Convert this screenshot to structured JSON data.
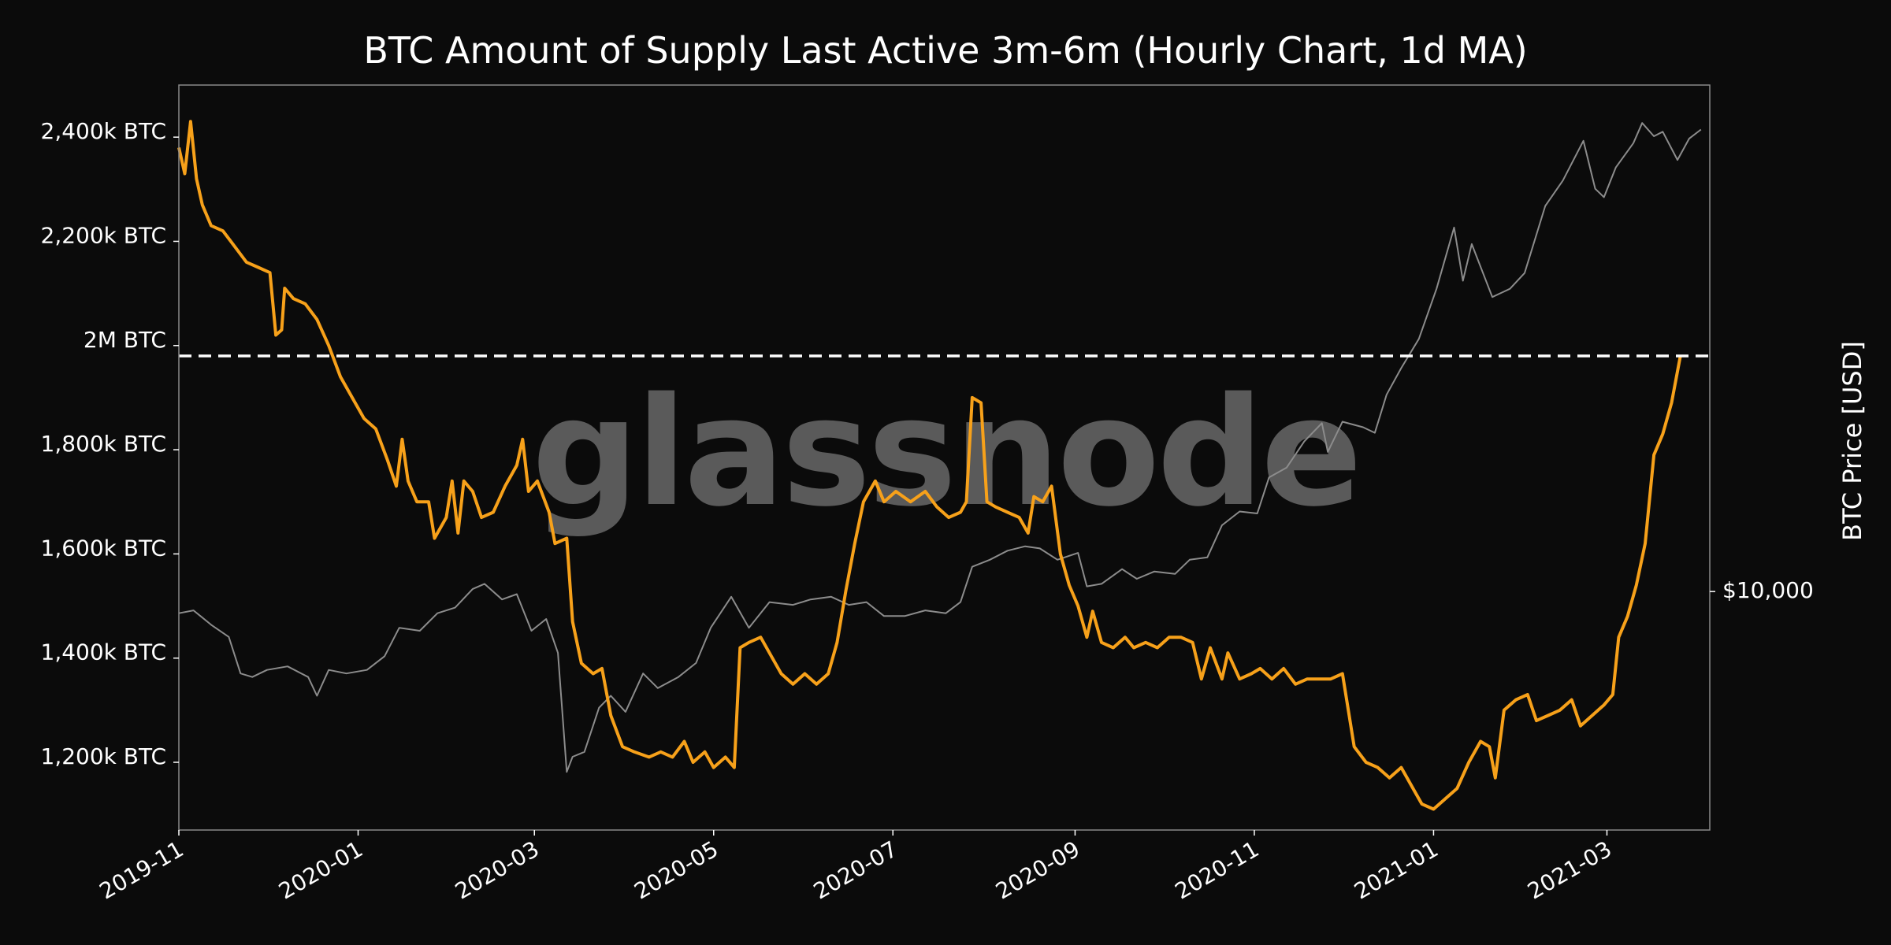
{
  "chart_data": {
    "type": "line",
    "title": "BTC Amount of Supply Last Active 3m-6m (Hourly Chart, 1d MA)",
    "watermark": "glassnode",
    "x_range": [
      "2019-11-01",
      "2021-04-05"
    ],
    "x_ticks": [
      "2019-11",
      "2020-01",
      "2020-03",
      "2020-05",
      "2020-07",
      "2020-09",
      "2020-11",
      "2021-01",
      "2021-03"
    ],
    "y_left": {
      "ylim": [
        1070000,
        2500000
      ],
      "ticks": [
        {
          "value": 1200000,
          "label": "1,200k BTC"
        },
        {
          "value": 1400000,
          "label": "1,400k BTC"
        },
        {
          "value": 1600000,
          "label": "1,600k BTC"
        },
        {
          "value": 1800000,
          "label": "1,800k BTC"
        },
        {
          "value": 2000000,
          "label": "2M BTC"
        },
        {
          "value": 2200000,
          "label": "2,200k BTC"
        },
        {
          "value": 2400000,
          "label": "2,400k BTC"
        }
      ]
    },
    "y_right": {
      "label": "BTC Price [USD]",
      "scale": "log",
      "ylim": [
        4000,
        70000
      ],
      "ticks": [
        {
          "value": 10000,
          "label": "$10,000"
        }
      ]
    },
    "reference_line": {
      "value": 1980000,
      "style": "dashed",
      "color": "#ffffff"
    },
    "series": [
      {
        "axis": "left",
        "color": "#f7a11a",
        "points": [
          [
            "2019-11-01",
            2380000
          ],
          [
            "2019-11-03",
            2330000
          ],
          [
            "2019-11-05",
            2430000
          ],
          [
            "2019-11-07",
            2320000
          ],
          [
            "2019-11-09",
            2270000
          ],
          [
            "2019-11-12",
            2230000
          ],
          [
            "2019-11-16",
            2220000
          ],
          [
            "2019-11-20",
            2190000
          ],
          [
            "2019-11-24",
            2160000
          ],
          [
            "2019-11-28",
            2150000
          ],
          [
            "2019-12-02",
            2140000
          ],
          [
            "2019-12-04",
            2020000
          ],
          [
            "2019-12-06",
            2030000
          ],
          [
            "2019-12-07",
            2110000
          ],
          [
            "2019-12-10",
            2090000
          ],
          [
            "2019-12-14",
            2080000
          ],
          [
            "2019-12-18",
            2050000
          ],
          [
            "2019-12-22",
            2000000
          ],
          [
            "2019-12-26",
            1940000
          ],
          [
            "2019-12-30",
            1900000
          ],
          [
            "2020-01-03",
            1860000
          ],
          [
            "2020-01-07",
            1840000
          ],
          [
            "2020-01-11",
            1780000
          ],
          [
            "2020-01-14",
            1730000
          ],
          [
            "2020-01-16",
            1820000
          ],
          [
            "2020-01-18",
            1740000
          ],
          [
            "2020-01-21",
            1700000
          ],
          [
            "2020-01-25",
            1700000
          ],
          [
            "2020-01-27",
            1630000
          ],
          [
            "2020-01-31",
            1670000
          ],
          [
            "2020-02-02",
            1740000
          ],
          [
            "2020-02-04",
            1640000
          ],
          [
            "2020-02-06",
            1740000
          ],
          [
            "2020-02-09",
            1720000
          ],
          [
            "2020-02-12",
            1670000
          ],
          [
            "2020-02-16",
            1680000
          ],
          [
            "2020-02-20",
            1730000
          ],
          [
            "2020-02-24",
            1770000
          ],
          [
            "2020-02-26",
            1820000
          ],
          [
            "2020-02-28",
            1720000
          ],
          [
            "2020-03-02",
            1740000
          ],
          [
            "2020-03-06",
            1680000
          ],
          [
            "2020-03-08",
            1620000
          ],
          [
            "2020-03-12",
            1630000
          ],
          [
            "2020-03-14",
            1470000
          ],
          [
            "2020-03-17",
            1390000
          ],
          [
            "2020-03-21",
            1370000
          ],
          [
            "2020-03-24",
            1380000
          ],
          [
            "2020-03-27",
            1290000
          ],
          [
            "2020-03-31",
            1230000
          ],
          [
            "2020-04-04",
            1220000
          ],
          [
            "2020-04-09",
            1210000
          ],
          [
            "2020-04-13",
            1220000
          ],
          [
            "2020-04-17",
            1210000
          ],
          [
            "2020-04-21",
            1240000
          ],
          [
            "2020-04-24",
            1200000
          ],
          [
            "2020-04-28",
            1220000
          ],
          [
            "2020-05-01",
            1190000
          ],
          [
            "2020-05-05",
            1210000
          ],
          [
            "2020-05-08",
            1190000
          ],
          [
            "2020-05-10",
            1420000
          ],
          [
            "2020-05-13",
            1430000
          ],
          [
            "2020-05-17",
            1440000
          ],
          [
            "2020-05-21",
            1400000
          ],
          [
            "2020-05-24",
            1370000
          ],
          [
            "2020-05-28",
            1350000
          ],
          [
            "2020-06-01",
            1370000
          ],
          [
            "2020-06-05",
            1350000
          ],
          [
            "2020-06-09",
            1370000
          ],
          [
            "2020-06-12",
            1430000
          ],
          [
            "2020-06-15",
            1530000
          ],
          [
            "2020-06-18",
            1620000
          ],
          [
            "2020-06-21",
            1700000
          ],
          [
            "2020-06-25",
            1740000
          ],
          [
            "2020-06-28",
            1700000
          ],
          [
            "2020-07-02",
            1720000
          ],
          [
            "2020-07-07",
            1700000
          ],
          [
            "2020-07-12",
            1720000
          ],
          [
            "2020-07-16",
            1690000
          ],
          [
            "2020-07-20",
            1670000
          ],
          [
            "2020-07-24",
            1680000
          ],
          [
            "2020-07-26",
            1700000
          ],
          [
            "2020-07-28",
            1900000
          ],
          [
            "2020-07-31",
            1890000
          ],
          [
            "2020-08-02",
            1700000
          ],
          [
            "2020-08-05",
            1690000
          ],
          [
            "2020-08-09",
            1680000
          ],
          [
            "2020-08-13",
            1670000
          ],
          [
            "2020-08-16",
            1640000
          ],
          [
            "2020-08-18",
            1710000
          ],
          [
            "2020-08-21",
            1700000
          ],
          [
            "2020-08-24",
            1730000
          ],
          [
            "2020-08-27",
            1600000
          ],
          [
            "2020-08-30",
            1540000
          ],
          [
            "2020-09-02",
            1500000
          ],
          [
            "2020-09-05",
            1440000
          ],
          [
            "2020-09-07",
            1490000
          ],
          [
            "2020-09-10",
            1430000
          ],
          [
            "2020-09-14",
            1420000
          ],
          [
            "2020-09-18",
            1440000
          ],
          [
            "2020-09-21",
            1420000
          ],
          [
            "2020-09-25",
            1430000
          ],
          [
            "2020-09-29",
            1420000
          ],
          [
            "2020-10-03",
            1440000
          ],
          [
            "2020-10-07",
            1440000
          ],
          [
            "2020-10-11",
            1430000
          ],
          [
            "2020-10-14",
            1360000
          ],
          [
            "2020-10-17",
            1420000
          ],
          [
            "2020-10-21",
            1360000
          ],
          [
            "2020-10-23",
            1410000
          ],
          [
            "2020-10-27",
            1360000
          ],
          [
            "2020-10-31",
            1370000
          ],
          [
            "2020-11-03",
            1380000
          ],
          [
            "2020-11-07",
            1360000
          ],
          [
            "2020-11-11",
            1380000
          ],
          [
            "2020-11-15",
            1350000
          ],
          [
            "2020-11-19",
            1360000
          ],
          [
            "2020-11-23",
            1360000
          ],
          [
            "2020-11-27",
            1360000
          ],
          [
            "2020-12-01",
            1370000
          ],
          [
            "2020-12-05",
            1230000
          ],
          [
            "2020-12-09",
            1200000
          ],
          [
            "2020-12-13",
            1190000
          ],
          [
            "2020-12-17",
            1170000
          ],
          [
            "2020-12-21",
            1190000
          ],
          [
            "2020-12-25",
            1150000
          ],
          [
            "2020-12-28",
            1120000
          ],
          [
            "2021-01-01",
            1110000
          ],
          [
            "2021-01-05",
            1130000
          ],
          [
            "2021-01-09",
            1150000
          ],
          [
            "2021-01-13",
            1200000
          ],
          [
            "2021-01-17",
            1240000
          ],
          [
            "2021-01-20",
            1230000
          ],
          [
            "2021-01-22",
            1170000
          ],
          [
            "2021-01-25",
            1300000
          ],
          [
            "2021-01-29",
            1320000
          ],
          [
            "2021-02-02",
            1330000
          ],
          [
            "2021-02-05",
            1280000
          ],
          [
            "2021-02-09",
            1290000
          ],
          [
            "2021-02-13",
            1300000
          ],
          [
            "2021-02-17",
            1320000
          ],
          [
            "2021-02-20",
            1270000
          ],
          [
            "2021-02-24",
            1290000
          ],
          [
            "2021-02-28",
            1310000
          ],
          [
            "2021-03-03",
            1330000
          ],
          [
            "2021-03-05",
            1440000
          ],
          [
            "2021-03-08",
            1480000
          ],
          [
            "2021-03-11",
            1540000
          ],
          [
            "2021-03-14",
            1620000
          ],
          [
            "2021-03-17",
            1790000
          ],
          [
            "2021-03-20",
            1830000
          ],
          [
            "2021-03-23",
            1890000
          ],
          [
            "2021-03-26",
            1980000
          ]
        ]
      },
      {
        "axis": "right",
        "color": "#8c8c8c",
        "points": [
          [
            "2019-11-01",
            9200
          ],
          [
            "2019-11-06",
            9300
          ],
          [
            "2019-11-12",
            8800
          ],
          [
            "2019-11-18",
            8400
          ],
          [
            "2019-11-22",
            7300
          ],
          [
            "2019-11-26",
            7200
          ],
          [
            "2019-12-01",
            7400
          ],
          [
            "2019-12-08",
            7500
          ],
          [
            "2019-12-15",
            7200
          ],
          [
            "2019-12-18",
            6700
          ],
          [
            "2019-12-22",
            7400
          ],
          [
            "2019-12-28",
            7300
          ],
          [
            "2020-01-04",
            7400
          ],
          [
            "2020-01-10",
            7800
          ],
          [
            "2020-01-15",
            8700
          ],
          [
            "2020-01-22",
            8600
          ],
          [
            "2020-01-28",
            9200
          ],
          [
            "2020-02-03",
            9400
          ],
          [
            "2020-02-09",
            10100
          ],
          [
            "2020-02-13",
            10300
          ],
          [
            "2020-02-19",
            9700
          ],
          [
            "2020-02-24",
            9900
          ],
          [
            "2020-02-29",
            8600
          ],
          [
            "2020-03-05",
            9000
          ],
          [
            "2020-03-09",
            7900
          ],
          [
            "2020-03-12",
            5000
          ],
          [
            "2020-03-14",
            5300
          ],
          [
            "2020-03-18",
            5400
          ],
          [
            "2020-03-23",
            6400
          ],
          [
            "2020-03-27",
            6700
          ],
          [
            "2020-04-01",
            6300
          ],
          [
            "2020-04-07",
            7300
          ],
          [
            "2020-04-12",
            6900
          ],
          [
            "2020-04-19",
            7200
          ],
          [
            "2020-04-25",
            7600
          ],
          [
            "2020-04-30",
            8700
          ],
          [
            "2020-05-07",
            9800
          ],
          [
            "2020-05-13",
            8700
          ],
          [
            "2020-05-20",
            9600
          ],
          [
            "2020-05-28",
            9500
          ],
          [
            "2020-06-03",
            9700
          ],
          [
            "2020-06-10",
            9800
          ],
          [
            "2020-06-16",
            9500
          ],
          [
            "2020-06-22",
            9600
          ],
          [
            "2020-06-28",
            9100
          ],
          [
            "2020-07-05",
            9100
          ],
          [
            "2020-07-12",
            9300
          ],
          [
            "2020-07-19",
            9200
          ],
          [
            "2020-07-24",
            9600
          ],
          [
            "2020-07-28",
            11000
          ],
          [
            "2020-08-03",
            11300
          ],
          [
            "2020-08-09",
            11700
          ],
          [
            "2020-08-15",
            11900
          ],
          [
            "2020-08-20",
            11800
          ],
          [
            "2020-08-26",
            11300
          ],
          [
            "2020-09-02",
            11600
          ],
          [
            "2020-09-05",
            10200
          ],
          [
            "2020-09-10",
            10300
          ],
          [
            "2020-09-17",
            10900
          ],
          [
            "2020-09-22",
            10500
          ],
          [
            "2020-09-28",
            10800
          ],
          [
            "2020-10-05",
            10700
          ],
          [
            "2020-10-10",
            11300
          ],
          [
            "2020-10-16",
            11400
          ],
          [
            "2020-10-21",
            12900
          ],
          [
            "2020-10-27",
            13600
          ],
          [
            "2020-11-02",
            13500
          ],
          [
            "2020-11-06",
            15500
          ],
          [
            "2020-11-12",
            16100
          ],
          [
            "2020-11-18",
            17800
          ],
          [
            "2020-11-24",
            19100
          ],
          [
            "2020-11-26",
            17100
          ],
          [
            "2020-12-01",
            19200
          ],
          [
            "2020-12-08",
            18800
          ],
          [
            "2020-12-12",
            18400
          ],
          [
            "2020-12-16",
            21300
          ],
          [
            "2020-12-21",
            23600
          ],
          [
            "2020-12-27",
            26400
          ],
          [
            "2021-01-02",
            32000
          ],
          [
            "2021-01-08",
            40500
          ],
          [
            "2021-01-11",
            33000
          ],
          [
            "2021-01-14",
            38000
          ],
          [
            "2021-01-21",
            31000
          ],
          [
            "2021-01-27",
            32000
          ],
          [
            "2021-02-01",
            34000
          ],
          [
            "2021-02-08",
            44000
          ],
          [
            "2021-02-14",
            48500
          ],
          [
            "2021-02-21",
            56500
          ],
          [
            "2021-02-25",
            47000
          ],
          [
            "2021-02-28",
            45500
          ],
          [
            "2021-03-04",
            51000
          ],
          [
            "2021-03-10",
            56000
          ],
          [
            "2021-03-13",
            60500
          ],
          [
            "2021-03-17",
            57500
          ],
          [
            "2021-03-20",
            58500
          ],
          [
            "2021-03-25",
            52500
          ],
          [
            "2021-03-29",
            57000
          ],
          [
            "2021-04-02",
            59000
          ]
        ]
      }
    ]
  }
}
